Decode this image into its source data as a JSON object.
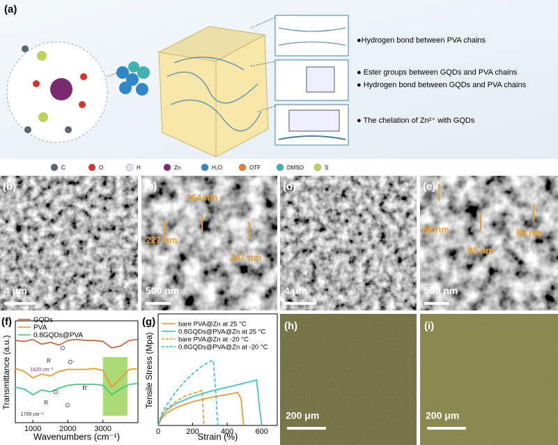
{
  "panel_a": {
    "label": "(a)",
    "notes": [
      "●Hydrogen bond between PVA chains",
      "● Ester groups between GQDs and PVA chains",
      "● Hydrogen bond between GQDs and PVA chains",
      "● The chelation of Zn²⁺ with GQDs"
    ],
    "legend": [
      {
        "name": "C",
        "color": "#5c6670"
      },
      {
        "name": "O",
        "color": "#d9342b"
      },
      {
        "name": "H",
        "color": "#dfe6ee"
      },
      {
        "name": "Zn",
        "color": "#7b2a6e"
      },
      {
        "name": "H₂O",
        "color": "#2f86c9"
      },
      {
        "name": "OTF",
        "color": "#f07d2a"
      },
      {
        "name": "DMSO",
        "color": "#3fb3b0"
      },
      {
        "name": "S",
        "color": "#bcd35a"
      }
    ]
  },
  "sem": [
    {
      "label": "(b)",
      "scale": "4 μm",
      "sizes": []
    },
    {
      "label": "(c)",
      "scale": "500 nm",
      "sizes": [
        "164 nm",
        "227 nm",
        "147 nm"
      ]
    },
    {
      "label": "(d)",
      "scale": "4 μm",
      "sizes": []
    },
    {
      "label": "(e)",
      "scale": "500 nm",
      "sizes": [
        "80 nm",
        "91 nm",
        "85 nm"
      ]
    }
  ],
  "optical": [
    {
      "label": "(h)",
      "scale": "200 μm"
    },
    {
      "label": "(i)",
      "scale": "200 μm"
    }
  ],
  "chart_data": [
    {
      "type": "line",
      "label": "(f)",
      "x_label": "Wavenumbers (cm⁻¹)",
      "y_label": "Transmittance (a.u.)",
      "x": [
        500,
        750,
        1000,
        1250,
        1500,
        1750,
        2000,
        2250,
        2500,
        2750,
        3000,
        3250,
        3500,
        3750,
        4000
      ],
      "xlim": [
        500,
        4000
      ],
      "xticks": [
        1000,
        2000,
        3000
      ],
      "ylim": [
        0,
        100
      ],
      "highlight_range": [
        3000,
        3700
      ],
      "highlight_color": "#8fce4a",
      "annotations": [
        "1620 cm⁻¹",
        "1709 cm⁻¹",
        "O",
        "R",
        "O⁻",
        "O",
        "R",
        "O",
        "R'"
      ],
      "series": [
        {
          "name": "GQDs",
          "color": "#c8572e",
          "values": [
            88,
            87,
            89,
            84,
            86,
            83,
            88,
            89,
            88,
            88,
            87,
            80,
            82,
            88,
            89
          ]
        },
        {
          "name": "PVA",
          "color": "#f0901e",
          "values": [
            58,
            55,
            48,
            52,
            50,
            55,
            57,
            57,
            57,
            58,
            56,
            38,
            47,
            57,
            58
          ]
        },
        {
          "name": "0.8GQDs@PVA",
          "color": "#2ecc71",
          "values": [
            38,
            36,
            30,
            35,
            33,
            37,
            40,
            41,
            41,
            41,
            40,
            30,
            36,
            41,
            42
          ]
        }
      ]
    },
    {
      "type": "line",
      "label": "(g)",
      "x_label": "Strain (%)",
      "y_label": "Tensile Stress (Mpa)",
      "xlim": [
        0,
        690
      ],
      "xticks": [
        0,
        200,
        400,
        600
      ],
      "ylim": [
        0,
        5
      ],
      "series": [
        {
          "name": "bare PVA@Zn at 25 °C",
          "color": "#f0901e",
          "dash": false,
          "x": [
            0,
            20,
            50,
            100,
            200,
            300,
            400,
            460,
            480,
            495
          ],
          "values": [
            0,
            0.35,
            0.6,
            0.85,
            1.15,
            1.35,
            1.5,
            1.6,
            1.3,
            0
          ]
        },
        {
          "name": "0.8GQDs@PVA@Zn at 25 °C",
          "color": "#2bbcd0",
          "dash": false,
          "x": [
            0,
            20,
            50,
            100,
            200,
            300,
            400,
            500,
            570,
            585,
            600
          ],
          "values": [
            0,
            0.45,
            0.75,
            1.05,
            1.4,
            1.65,
            1.85,
            2.05,
            2.2,
            1.0,
            0
          ]
        },
        {
          "name": "bare PVA@Zn at -20 °C",
          "color": "#f0901e",
          "dash": true,
          "x": [
            0,
            20,
            50,
            100,
            150,
            200,
            240,
            255,
            265
          ],
          "values": [
            0,
            0.4,
            0.8,
            1.15,
            1.4,
            1.55,
            1.65,
            1.7,
            0
          ]
        },
        {
          "name": "0.8GQDs@PVA@Zn at -20 °C",
          "color": "#2bbcd0",
          "dash": true,
          "x": [
            0,
            20,
            50,
            100,
            150,
            200,
            250,
            300,
            320,
            335,
            345
          ],
          "values": [
            0,
            0.55,
            1.0,
            1.6,
            2.1,
            2.5,
            2.85,
            3.1,
            3.15,
            1.5,
            0
          ]
        }
      ]
    }
  ]
}
